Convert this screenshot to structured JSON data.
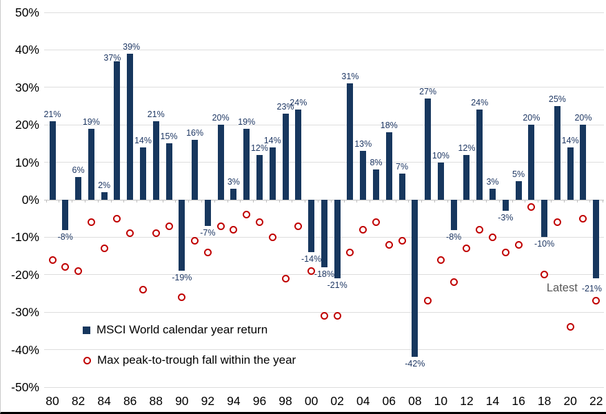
{
  "chart_data": {
    "type": "bar",
    "title": "",
    "categories": [
      1980,
      1981,
      1982,
      1983,
      1984,
      1985,
      1986,
      1987,
      1988,
      1989,
      1990,
      1991,
      1992,
      1993,
      1994,
      1995,
      1996,
      1997,
      1998,
      1999,
      2000,
      2001,
      2002,
      2003,
      2004,
      2005,
      2006,
      2007,
      2008,
      2009,
      2010,
      2011,
      2012,
      2013,
      2014,
      2015,
      2016,
      2017,
      2018,
      2019,
      2020,
      2021,
      2022
    ],
    "series": [
      {
        "name": "MSCI World calendar year return",
        "type": "bar",
        "color": "#17375E",
        "values": [
          21,
          -8,
          6,
          19,
          2,
          37,
          39,
          14,
          21,
          15,
          -19,
          16,
          -7,
          20,
          3,
          19,
          12,
          14,
          23,
          24,
          -14,
          -18,
          -21,
          31,
          13,
          8,
          18,
          7,
          -42,
          27,
          10,
          -8,
          12,
          24,
          3,
          -3,
          5,
          20,
          -10,
          25,
          14,
          20,
          -21
        ]
      },
      {
        "name": "Max peak-to-trough fall within the year",
        "type": "scatter",
        "marker": "open-circle",
        "color": "#C00000",
        "values": [
          -16,
          -18,
          -19,
          -6,
          -13,
          -5,
          -9,
          -24,
          -9,
          -7,
          -26,
          -11,
          -14,
          -7,
          -8,
          -4,
          -6,
          -10,
          -21,
          -7,
          -19,
          -31,
          -31,
          -14,
          -8,
          -6,
          -12,
          -11,
          null,
          -27,
          -16,
          -22,
          -13,
          -8,
          -10,
          -14,
          -12,
          -2,
          -20,
          -6,
          -34,
          -5,
          -27
        ]
      }
    ],
    "bar_labels": [
      "21%",
      "-8%",
      "6%",
      "19%",
      "2%",
      "37%",
      "39%",
      "14%",
      "21%",
      "15%",
      "-19%",
      "16%",
      "-7%",
      "20%",
      "3%",
      "19%",
      "12%",
      "14%",
      "23%",
      "24%",
      "-14%",
      "-18%",
      "-21%",
      "31%",
      "13%",
      "8%",
      "18%",
      "7%",
      "-42%",
      "27%",
      "10%",
      "-8%",
      "12%",
      "24%",
      "3%",
      "-3%",
      "5%",
      "20%",
      "-10%",
      "25%",
      "14%",
      "20%",
      "-21%"
    ],
    "label_offsets": {
      "5": {
        "dx": -7,
        "dy": 5
      },
      "6": {
        "dx": 2,
        "dy": 0
      }
    },
    "ylim": [
      -50,
      50
    ],
    "yticks": [
      50,
      40,
      30,
      20,
      10,
      0,
      -10,
      -20,
      -30,
      -40,
      -50
    ],
    "ytick_labels": [
      "50%",
      "40%",
      "30%",
      "20%",
      "10%",
      "0%",
      "-10%",
      "-20%",
      "-30%",
      "-40%",
      "-50%"
    ],
    "xtick_labels": [
      "80",
      "82",
      "84",
      "86",
      "88",
      "90",
      "92",
      "94",
      "96",
      "98",
      "00",
      "02",
      "04",
      "06",
      "08",
      "10",
      "12",
      "14",
      "16",
      "18",
      "20",
      "22"
    ],
    "grid": "horizontal",
    "legend_position": "inside-lower-left",
    "annotation": {
      "prefix": "Latest",
      "value": "-21%"
    }
  },
  "colors": {
    "bar": "#17375E",
    "marker": "#C00000",
    "data_label": "#1F3864",
    "grid": "#DDDDDD",
    "axis": "#BFBFBF",
    "axis_text": "#000000",
    "annotation_prefix": "#595959",
    "background": "#FFFFFF"
  }
}
